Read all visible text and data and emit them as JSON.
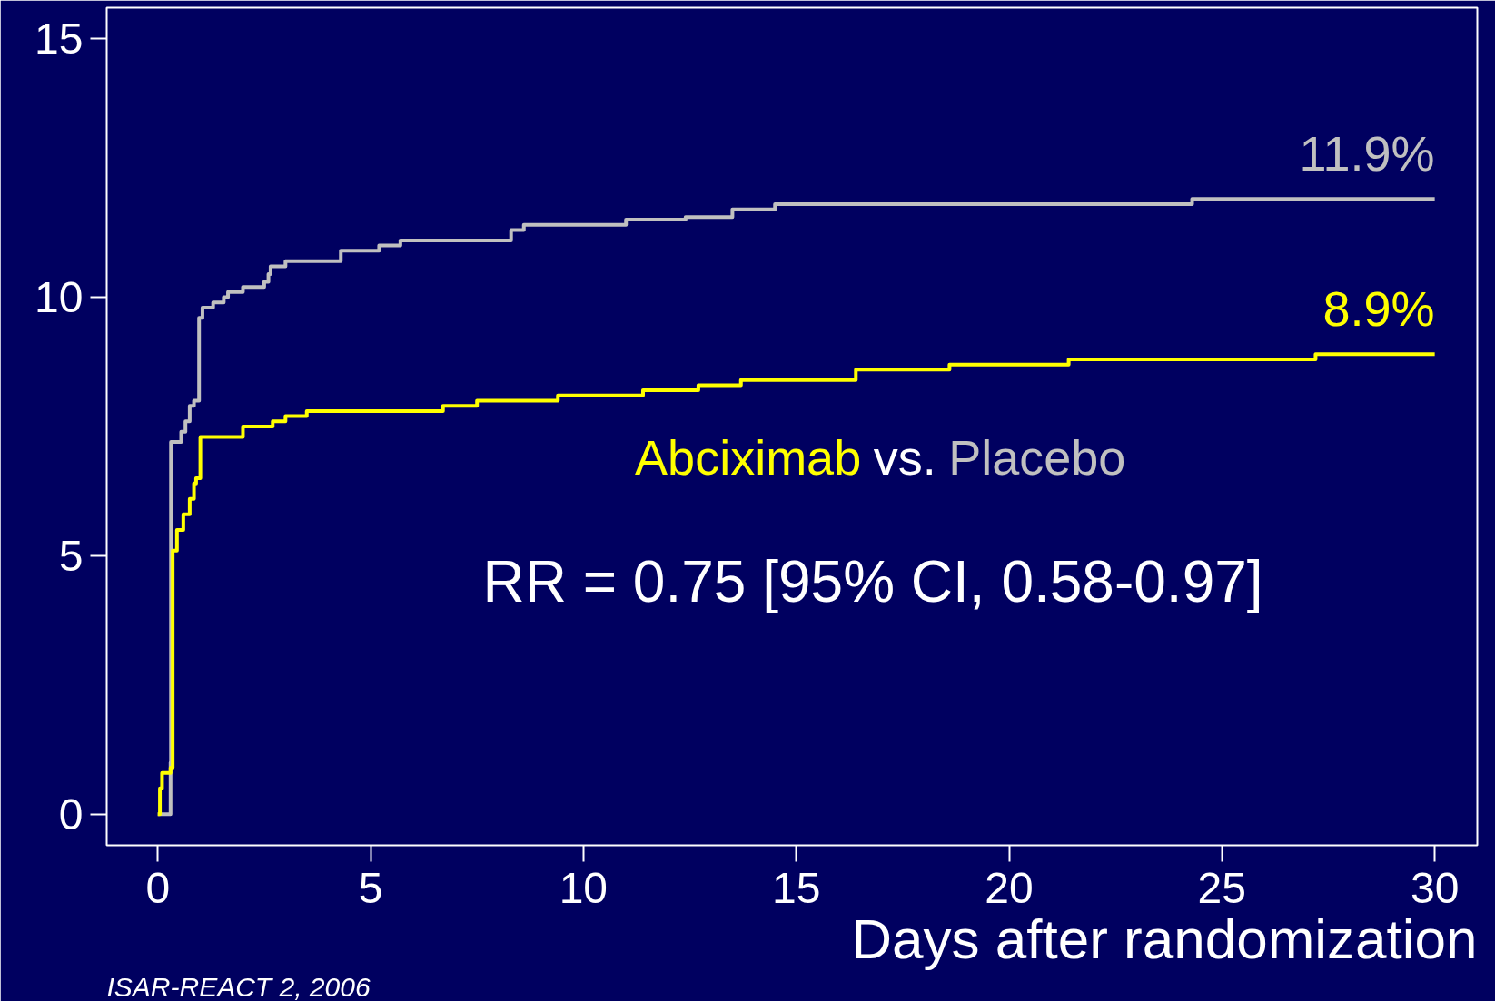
{
  "chart_data": {
    "type": "step",
    "xlabel": "Days after randomization",
    "xlim": [
      -1.2,
      31
    ],
    "ylim": [
      -0.6,
      15.6
    ],
    "xticks": [
      0,
      5,
      10,
      15,
      20,
      25,
      30
    ],
    "yticks": [
      0,
      5,
      10,
      15
    ],
    "grid": false,
    "legend": "center",
    "annotations": [
      "vs.",
      "RR = 0.75 [95% CI, 0.58-0.97]",
      "ISAR-REACT 2, 2006"
    ],
    "series": [
      {
        "name": "Placebo",
        "color": "#c0c0c0",
        "x": [
          0,
          0.3,
          0.31,
          0.55,
          0.65,
          0.75,
          0.85,
          0.97,
          1.05,
          1.3,
          1.55,
          1.65,
          2.0,
          2.5,
          2.6,
          2.65,
          3.0,
          4.3,
          5.2,
          5.7,
          8.3,
          8.6,
          11,
          12.4,
          13.5,
          14.5,
          24.3,
          30
        ],
        "values": [
          0,
          1.0,
          7.2,
          7.4,
          7.6,
          7.9,
          8.0,
          9.6,
          9.8,
          9.9,
          10.0,
          10.1,
          10.2,
          10.3,
          10.45,
          10.6,
          10.7,
          10.9,
          11.0,
          11.1,
          11.3,
          11.4,
          11.5,
          11.55,
          11.7,
          11.8,
          11.9,
          11.9
        ],
        "value_labels": [
          null,
          null,
          null,
          null,
          null,
          null,
          null,
          null,
          null,
          null,
          null,
          null,
          null,
          null,
          null,
          null,
          null,
          null,
          null,
          null,
          null,
          null,
          null,
          null,
          null,
          null,
          null,
          "11.9%"
        ]
      },
      {
        "name": "Abciximab",
        "color": "#ffff00",
        "x": [
          0,
          0.05,
          0.1,
          0.3,
          0.35,
          0.45,
          0.6,
          0.75,
          0.85,
          0.9,
          1.0,
          2.0,
          2.7,
          3.0,
          3.5,
          6.7,
          7.5,
          9.4,
          11.4,
          12.7,
          13.7,
          16.4,
          18.6,
          21.4,
          27.2,
          30
        ],
        "values": [
          0,
          0.5,
          0.8,
          0.9,
          5.1,
          5.5,
          5.8,
          6.1,
          6.4,
          6.5,
          7.3,
          7.5,
          7.6,
          7.7,
          7.8,
          7.9,
          8.0,
          8.1,
          8.2,
          8.3,
          8.4,
          8.6,
          8.7,
          8.8,
          8.9,
          8.9
        ],
        "value_labels": [
          null,
          null,
          null,
          null,
          null,
          null,
          null,
          null,
          null,
          null,
          null,
          null,
          null,
          null,
          null,
          null,
          null,
          null,
          null,
          null,
          null,
          null,
          null,
          null,
          null,
          "8.9%"
        ]
      }
    ]
  }
}
